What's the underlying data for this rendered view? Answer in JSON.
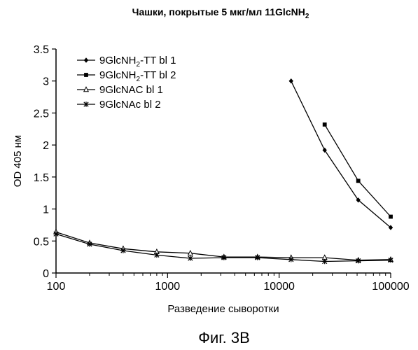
{
  "chart_data": {
    "type": "line",
    "title": "Чашки, покрытые 5 мкг/мл 11GlcNH",
    "title_sub": "2",
    "xlabel": "Разведение сыворотки",
    "ylabel": "OD 405 нм",
    "x_scale": "log",
    "xlim": [
      100,
      100000
    ],
    "ylim": [
      0,
      3.5
    ],
    "x_ticks": [
      100,
      1000,
      10000,
      100000
    ],
    "x_tick_labels": [
      "100",
      "1000",
      "10000",
      "100000"
    ],
    "y_ticks": [
      0,
      0.5,
      1,
      1.5,
      2,
      2.5,
      3,
      3.5
    ],
    "y_tick_labels": [
      "0",
      "0.5",
      "1",
      "1.5",
      "2",
      "2.5",
      "3",
      "3.5"
    ],
    "grid": false,
    "legend_position": "top-left",
    "series": [
      {
        "name_parts": [
          "9GlcNH",
          "2",
          "-TT bl 1"
        ],
        "marker": "diamond",
        "x": [
          12800,
          25600,
          51200,
          100000
        ],
        "y": [
          3.0,
          1.92,
          1.14,
          0.71
        ]
      },
      {
        "name_parts": [
          "9GlcNH",
          "2",
          "-TT bl 2"
        ],
        "marker": "square",
        "x": [
          25600,
          51200,
          100000
        ],
        "y": [
          2.32,
          1.44,
          0.88
        ]
      },
      {
        "name_parts": [
          "9GlcNAC bl 1",
          "",
          ""
        ],
        "marker": "triangle",
        "x": [
          100,
          200,
          400,
          800,
          1600,
          3200,
          6400,
          12800,
          25600,
          51200,
          100000
        ],
        "y": [
          0.64,
          0.47,
          0.38,
          0.33,
          0.31,
          0.25,
          0.25,
          0.24,
          0.24,
          0.2,
          0.21
        ]
      },
      {
        "name_parts": [
          "9GlcNAc bl 2",
          "",
          ""
        ],
        "marker": "star",
        "x": [
          100,
          200,
          400,
          800,
          1600,
          3200,
          6400,
          12800,
          25600,
          51200,
          100000
        ],
        "y": [
          0.61,
          0.45,
          0.35,
          0.28,
          0.23,
          0.24,
          0.24,
          0.21,
          0.18,
          0.19,
          0.2
        ]
      }
    ]
  },
  "caption": "Фиг. 3В"
}
